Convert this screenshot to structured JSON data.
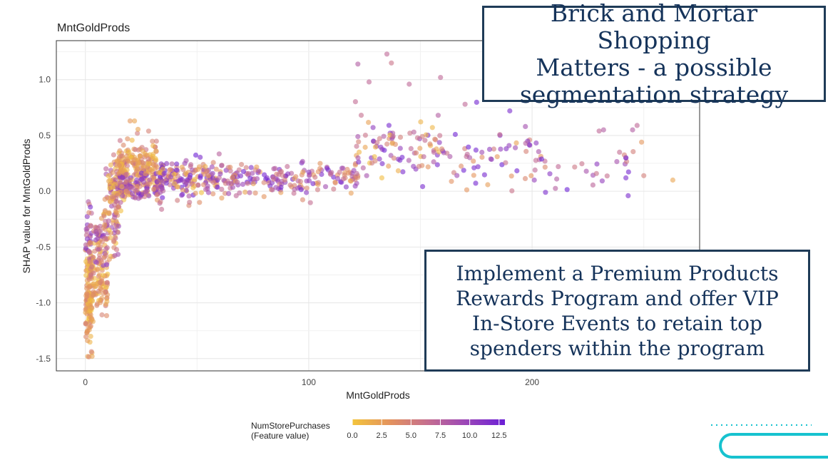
{
  "callouts": {
    "top": "Brick and Mortar Shopping\nMatters - a possible\nsegmentation strategy",
    "bottom": "Implement a Premium Products\nRewards Program and offer VIP\nIn-Store Events to retain top\nspenders within the program"
  },
  "chart_data": {
    "type": "scatter",
    "title": "MntGoldProds",
    "xlabel": "MntGoldProds",
    "ylabel": "SHAP value for MntGoldProds",
    "xlim": [
      -13,
      275
    ],
    "ylim": [
      -1.61,
      1.35
    ],
    "x_ticks": [
      0,
      100,
      200
    ],
    "x_tick_labels": [
      "0",
      "100",
      "200"
    ],
    "y_ticks": [
      -1.5,
      -1.0,
      -0.5,
      0.0,
      0.5,
      1.0
    ],
    "y_tick_labels": [
      "-1.5",
      "-1.0",
      "-0.5",
      "0.0",
      "0.5",
      "1.0"
    ],
    "grid": true,
    "color_feature": "NumStorePurchases",
    "legend": {
      "title_line1": "NumStorePurchases",
      "title_line2": "(Feature value)",
      "ticks": [
        "0.0",
        "2.5",
        "5.0",
        "7.5",
        "10.0",
        "12.5"
      ],
      "range": [
        0,
        13
      ],
      "colors": [
        "#f3c43c",
        "#e3925e",
        "#c46d90",
        "#9a46b8",
        "#6b1fd6"
      ],
      "position": "bottom"
    },
    "point_alpha": 0.6,
    "highlighted_points": [
      {
        "x": 3,
        "y": -1.48,
        "c": 2
      },
      {
        "x": 20,
        "y": 0.63,
        "c": 3
      },
      {
        "x": 22,
        "y": 0.63,
        "c": 2
      },
      {
        "x": 122,
        "y": 1.14,
        "c": 8
      },
      {
        "x": 127,
        "y": 0.98,
        "c": 7
      },
      {
        "x": 135,
        "y": 1.23,
        "c": 7
      },
      {
        "x": 137,
        "y": 1.15,
        "c": 6
      },
      {
        "x": 145,
        "y": 0.96,
        "c": 7
      },
      {
        "x": 159,
        "y": 1.02,
        "c": 7
      },
      {
        "x": 170,
        "y": 0.78,
        "c": 7
      },
      {
        "x": 174,
        "y": 0.21,
        "c": 12
      },
      {
        "x": 190,
        "y": 0.72,
        "c": 12
      },
      {
        "x": 197,
        "y": 0.58,
        "c": 9
      },
      {
        "x": 201,
        "y": 0.1,
        "c": 10
      },
      {
        "x": 206,
        "y": -0.01,
        "c": 12
      },
      {
        "x": 211,
        "y": 0.11,
        "c": 8
      },
      {
        "x": 230,
        "y": 0.54,
        "c": 7
      },
      {
        "x": 232,
        "y": 0.55,
        "c": 8
      },
      {
        "x": 242,
        "y": 0.3,
        "c": 10
      },
      {
        "x": 242,
        "y": 0.12,
        "c": 12
      },
      {
        "x": 243,
        "y": -0.04,
        "c": 12
      },
      {
        "x": 245,
        "y": 0.55,
        "c": 8
      },
      {
        "x": 247,
        "y": 0.59,
        "c": 7
      },
      {
        "x": 249,
        "y": 0.44,
        "c": 3
      },
      {
        "x": 250,
        "y": 0.14,
        "c": 5
      },
      {
        "x": 263,
        "y": 0.1,
        "c": 2
      }
    ],
    "clusters": [
      {
        "xmin": 0,
        "xmax": 3,
        "ymean": -0.95,
        "ysd": 0.22,
        "n": 110,
        "cmin": 0,
        "cmax": 5
      },
      {
        "xmin": 0,
        "xmax": 3,
        "ymean": -0.4,
        "ysd": 0.12,
        "n": 30,
        "cmin": 4,
        "cmax": 12
      },
      {
        "xmin": 2,
        "xmax": 10,
        "ymean": -0.78,
        "ysd": 0.16,
        "n": 110,
        "cmin": 0,
        "cmax": 6
      },
      {
        "xmin": 4,
        "xmax": 10,
        "ymean": -0.45,
        "ysd": 0.1,
        "n": 40,
        "cmin": 2,
        "cmax": 12
      },
      {
        "xmin": 8,
        "xmax": 15,
        "ymean": -0.28,
        "ysd": 0.18,
        "n": 70,
        "cmin": 0,
        "cmax": 10
      },
      {
        "xmin": 10,
        "xmax": 18,
        "ymean": 0.06,
        "ysd": 0.13,
        "n": 80,
        "cmin": 0,
        "cmax": 9
      },
      {
        "xmin": 14,
        "xmax": 32,
        "ymean": 0.22,
        "ysd": 0.12,
        "n": 180,
        "cmin": 0,
        "cmax": 6
      },
      {
        "xmin": 15,
        "xmax": 35,
        "ymean": 0.06,
        "ysd": 0.08,
        "n": 120,
        "cmin": 2,
        "cmax": 13
      },
      {
        "xmin": 32,
        "xmax": 60,
        "ymean": 0.12,
        "ysd": 0.09,
        "n": 160,
        "cmin": 0,
        "cmax": 13
      },
      {
        "xmin": 60,
        "xmax": 100,
        "ymean": 0.1,
        "ysd": 0.07,
        "n": 130,
        "cmin": 2,
        "cmax": 13
      },
      {
        "xmin": 100,
        "xmax": 122,
        "ymean": 0.13,
        "ysd": 0.07,
        "n": 60,
        "cmin": 2,
        "cmax": 13
      },
      {
        "xmin": 120,
        "xmax": 160,
        "ymean": 0.38,
        "ysd": 0.13,
        "n": 90,
        "cmin": 0,
        "cmax": 13
      },
      {
        "xmin": 155,
        "xmax": 205,
        "ymean": 0.33,
        "ysd": 0.14,
        "n": 60,
        "cmin": 2,
        "cmax": 13
      },
      {
        "xmin": 200,
        "xmax": 248,
        "ymean": 0.22,
        "ysd": 0.08,
        "n": 25,
        "cmin": 4,
        "cmax": 13
      }
    ]
  }
}
